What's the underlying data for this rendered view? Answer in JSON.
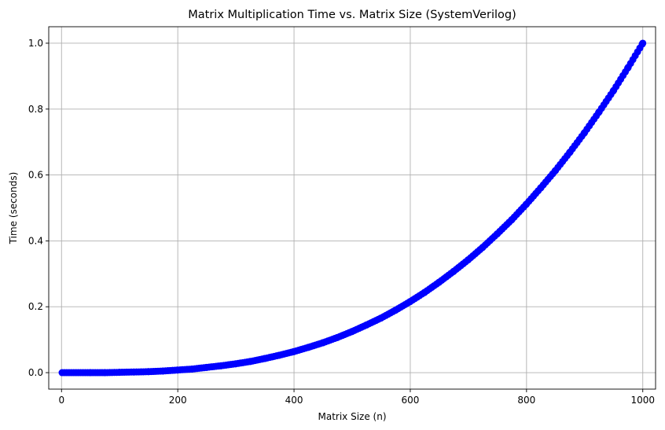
{
  "chart_data": {
    "type": "line",
    "title": "Matrix Multiplication Time vs. Matrix Size (SystemVerilog)",
    "xlabel": "Matrix Size (n)",
    "ylabel": "Time (seconds)",
    "xlim": [
      -22,
      1022
    ],
    "ylim": [
      -0.05,
      1.05
    ],
    "xticks": [
      0,
      200,
      400,
      600,
      800,
      1000
    ],
    "yticks": [
      0.0,
      0.2,
      0.4,
      0.6,
      0.8,
      1.0
    ],
    "xtick_labels": [
      "0",
      "200",
      "400",
      "600",
      "800",
      "1000"
    ],
    "ytick_labels": [
      "0.0",
      "0.2",
      "0.4",
      "0.6",
      "0.8",
      "1.0"
    ],
    "grid": true,
    "marker": "circle",
    "series": [
      {
        "color": "#0000ff",
        "x": [
          1,
          25,
          50,
          75,
          100,
          125,
          150,
          175,
          200,
          225,
          250,
          275,
          300,
          325,
          350,
          375,
          400,
          425,
          450,
          475,
          500,
          525,
          550,
          575,
          600,
          625,
          650,
          675,
          700,
          725,
          750,
          775,
          800,
          825,
          850,
          875,
          900,
          925,
          950,
          975,
          1000
        ],
        "y": [
          0.0,
          0.0,
          0.0,
          0.0,
          0.001,
          0.002,
          0.003,
          0.005,
          0.008,
          0.011,
          0.016,
          0.021,
          0.027,
          0.034,
          0.043,
          0.053,
          0.064,
          0.077,
          0.091,
          0.107,
          0.125,
          0.145,
          0.166,
          0.19,
          0.216,
          0.244,
          0.275,
          0.308,
          0.343,
          0.381,
          0.422,
          0.465,
          0.512,
          0.562,
          0.614,
          0.67,
          0.729,
          0.792,
          0.857,
          0.927,
          1.0
        ]
      }
    ]
  }
}
